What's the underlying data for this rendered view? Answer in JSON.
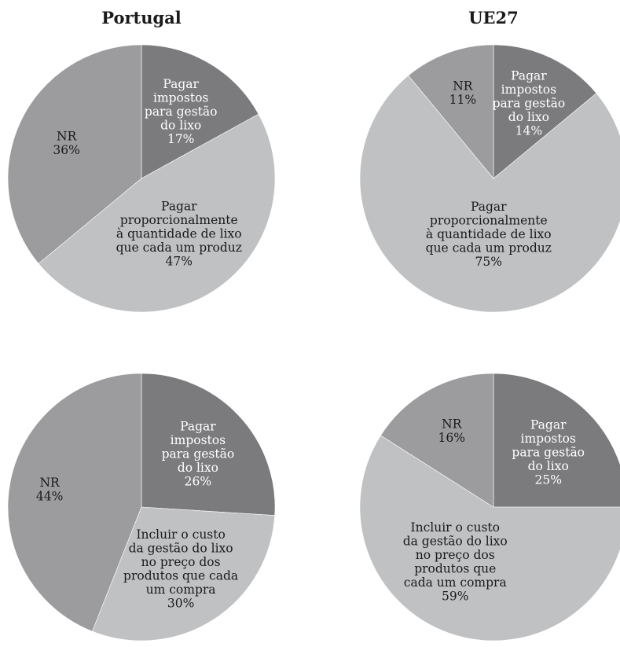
{
  "column_titles": {
    "left": "Portugal",
    "right": "UE27"
  },
  "colors": {
    "dark": "#7b7b7d",
    "medium": "#9c9c9e",
    "light": "#c0c1c3",
    "text_light": "#ffffff",
    "text_dark": "#1a1a1a"
  },
  "chart_data": [
    {
      "type": "pie",
      "region": "Portugal",
      "slices": [
        {
          "label": [
            "Pagar",
            "impostos",
            "para gestão",
            "do lixo",
            "17%"
          ],
          "value": 17,
          "color": "#7b7b7d",
          "text": "#ffffff"
        },
        {
          "label": [
            "Pagar",
            "proporcionalmente",
            "à quantidade de lixo",
            "que cada um produz",
            "47%"
          ],
          "value": 47,
          "color": "#c0c1c3",
          "text": "#1a1a1a"
        },
        {
          "label": [
            "NR",
            "36%"
          ],
          "value": 36,
          "color": "#9c9c9e",
          "text": "#1a1a1a"
        }
      ]
    },
    {
      "type": "pie",
      "region": "UE27",
      "slices": [
        {
          "label": [
            "Pagar",
            "impostos",
            "para gestão",
            "do lixo",
            "14%"
          ],
          "value": 14,
          "color": "#7b7b7d",
          "text": "#ffffff"
        },
        {
          "label": [
            "Pagar",
            "proporcionalmente",
            "à quantidade de lixo",
            "que cada um produz",
            "75%"
          ],
          "value": 75,
          "color": "#c0c1c3",
          "text": "#1a1a1a"
        },
        {
          "label": [
            "NR",
            "11%"
          ],
          "value": 11,
          "color": "#9c9c9e",
          "text": "#1a1a1a"
        }
      ]
    },
    {
      "type": "pie",
      "region": "Portugal",
      "slices": [
        {
          "label": [
            "Pagar",
            "impostos",
            "para gestão",
            "do lixo",
            "26%"
          ],
          "value": 26,
          "color": "#7b7b7d",
          "text": "#ffffff"
        },
        {
          "label": [
            "Incluir o custo",
            "da gestão do lixo",
            "no preço dos",
            "produtos que cada",
            "um compra",
            "30%"
          ],
          "value": 30,
          "color": "#c0c1c3",
          "text": "#1a1a1a"
        },
        {
          "label": [
            "NR",
            "44%"
          ],
          "value": 44,
          "color": "#9c9c9e",
          "text": "#1a1a1a"
        }
      ]
    },
    {
      "type": "pie",
      "region": "UE27",
      "slices": [
        {
          "label": [
            "Pagar",
            "impostos",
            "para gestão",
            "do lixo",
            "25%"
          ],
          "value": 25,
          "color": "#7b7b7d",
          "text": "#ffffff"
        },
        {
          "label": [
            "Incluir o custo",
            "da gestão do lixo",
            "no preço dos",
            "produtos que",
            "cada um compra",
            "59%"
          ],
          "value": 59,
          "color": "#c0c1c3",
          "text": "#1a1a1a"
        },
        {
          "label": [
            "NR",
            "16%"
          ],
          "value": 16,
          "color": "#9c9c9e",
          "text": "#1a1a1a"
        }
      ]
    }
  ]
}
